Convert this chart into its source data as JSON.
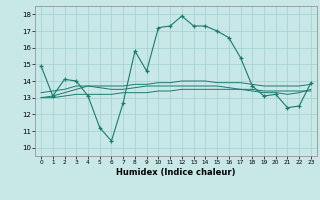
{
  "title": "",
  "xlabel": "Humidex (Indice chaleur)",
  "bg_color": "#c8e8e8",
  "line_color": "#1a7a6e",
  "grid_color": "#a0d0d0",
  "xlim": [
    -0.5,
    23.5
  ],
  "ylim": [
    9.5,
    18.5
  ],
  "xticks": [
    0,
    1,
    2,
    3,
    4,
    5,
    6,
    7,
    8,
    9,
    10,
    11,
    12,
    13,
    14,
    15,
    16,
    17,
    18,
    19,
    20,
    21,
    22,
    23
  ],
  "yticks": [
    10,
    11,
    12,
    13,
    14,
    15,
    16,
    17,
    18
  ],
  "main_x": [
    0,
    1,
    2,
    3,
    4,
    5,
    6,
    7,
    8,
    9,
    10,
    11,
    12,
    13,
    14,
    15,
    16,
    17,
    18,
    19,
    20,
    21,
    22,
    23
  ],
  "main_y": [
    14.9,
    13.1,
    14.1,
    14.0,
    13.1,
    11.2,
    10.4,
    12.7,
    15.8,
    14.6,
    17.2,
    17.3,
    17.9,
    17.3,
    17.3,
    17.0,
    16.6,
    15.4,
    13.7,
    13.1,
    13.2,
    12.4,
    12.5,
    13.9
  ],
  "line2_x": [
    0,
    1,
    2,
    3,
    4,
    5,
    6,
    7,
    8,
    9,
    10,
    11,
    12,
    13,
    14,
    15,
    16,
    17,
    18,
    19,
    20,
    21,
    22,
    23
  ],
  "line2_y": [
    13.0,
    13.0,
    13.1,
    13.2,
    13.2,
    13.2,
    13.2,
    13.3,
    13.3,
    13.3,
    13.4,
    13.4,
    13.5,
    13.5,
    13.5,
    13.5,
    13.5,
    13.5,
    13.5,
    13.4,
    13.4,
    13.4,
    13.4,
    13.4
  ],
  "line3_x": [
    0,
    1,
    2,
    3,
    4,
    5,
    6,
    7,
    8,
    9,
    10,
    11,
    12,
    13,
    14,
    15,
    16,
    17,
    18,
    19,
    20,
    21,
    22,
    23
  ],
  "line3_y": [
    13.0,
    13.1,
    13.3,
    13.5,
    13.7,
    13.7,
    13.7,
    13.7,
    13.8,
    13.8,
    13.9,
    13.9,
    14.0,
    14.0,
    14.0,
    13.9,
    13.9,
    13.9,
    13.8,
    13.7,
    13.7,
    13.7,
    13.7,
    13.8
  ],
  "line4_x": [
    0,
    1,
    2,
    3,
    4,
    5,
    6,
    7,
    8,
    9,
    10,
    11,
    12,
    13,
    14,
    15,
    16,
    17,
    18,
    19,
    20,
    21,
    22,
    23
  ],
  "line4_y": [
    13.3,
    13.4,
    13.5,
    13.7,
    13.7,
    13.6,
    13.5,
    13.5,
    13.6,
    13.7,
    13.7,
    13.7,
    13.7,
    13.7,
    13.7,
    13.7,
    13.6,
    13.5,
    13.4,
    13.3,
    13.3,
    13.2,
    13.3,
    13.5
  ]
}
